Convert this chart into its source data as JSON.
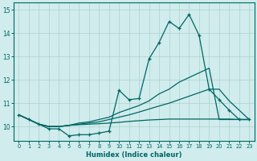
{
  "xlabel": "Humidex (Indice chaleur)",
  "x_values": [
    0,
    1,
    2,
    3,
    4,
    5,
    6,
    7,
    8,
    9,
    10,
    11,
    12,
    13,
    14,
    15,
    16,
    17,
    18,
    19,
    20,
    21,
    22,
    23
  ],
  "line1": [
    10.5,
    10.3,
    10.1,
    9.9,
    9.9,
    9.6,
    9.65,
    9.65,
    9.72,
    9.8,
    11.55,
    11.15,
    11.2,
    12.9,
    13.6,
    14.5,
    14.2,
    14.8,
    13.9,
    11.6,
    11.15,
    10.7,
    10.3,
    10.3
  ],
  "line2": [
    10.5,
    10.3,
    10.1,
    10.0,
    10.0,
    10.05,
    10.15,
    10.2,
    10.3,
    10.4,
    10.6,
    10.75,
    10.9,
    11.1,
    11.4,
    11.6,
    11.9,
    12.1,
    12.3,
    12.5,
    10.3,
    10.3,
    10.3,
    10.3
  ],
  "line3": [
    10.5,
    10.3,
    10.1,
    10.0,
    10.0,
    10.05,
    10.1,
    10.15,
    10.2,
    10.3,
    10.4,
    10.5,
    10.62,
    10.75,
    10.88,
    11.0,
    11.15,
    11.3,
    11.45,
    11.6,
    11.6,
    11.1,
    10.7,
    10.3
  ],
  "line4": [
    10.5,
    10.3,
    10.1,
    10.0,
    10.0,
    10.05,
    10.08,
    10.1,
    10.12,
    10.15,
    10.18,
    10.22,
    10.25,
    10.28,
    10.3,
    10.32,
    10.32,
    10.32,
    10.32,
    10.32,
    10.32,
    10.32,
    10.3,
    10.3
  ],
  "color": "#006666",
  "bg_color": "#d0ecec",
  "grid_color": "#aed0d0",
  "ylim": [
    9.4,
    15.3
  ],
  "yticks": [
    10,
    11,
    12,
    13,
    14,
    15
  ],
  "xticks": [
    0,
    1,
    2,
    3,
    4,
    5,
    6,
    7,
    8,
    9,
    10,
    11,
    12,
    13,
    14,
    15,
    16,
    17,
    18,
    19,
    20,
    21,
    22,
    23
  ]
}
